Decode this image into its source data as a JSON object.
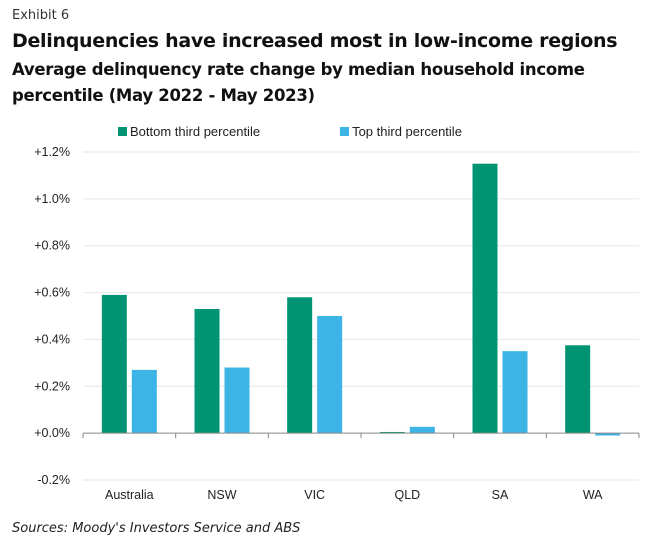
{
  "header": {
    "exhibit": "Exhibit 6",
    "title": "Delinquencies have increased most in low-income regions",
    "subtitle": "Average delinquency rate change by median household income percentile (May 2022 - May 2023)"
  },
  "source": "Sources: Moody's Investors Service and ABS",
  "colors": {
    "bottom": "#009473",
    "top": "#3db4e6",
    "grid": "#e6e6e6",
    "axis": "#888888"
  },
  "chart_data": {
    "type": "bar",
    "title": "Delinquencies have increased most in low-income regions",
    "subtitle": "Average delinquency rate change by median household income percentile (May 2022 - May 2023)",
    "xlabel": "",
    "ylabel": "",
    "categories": [
      "Australia",
      "NSW",
      "VIC",
      "QLD",
      "SA",
      "WA"
    ],
    "series": [
      {
        "name": "Bottom third percentile",
        "values": [
          0.59,
          0.53,
          0.58,
          0.005,
          1.15,
          0.375
        ]
      },
      {
        "name": "Top third percentile",
        "values": [
          0.27,
          0.28,
          0.5,
          0.027,
          0.35,
          -0.01
        ]
      }
    ],
    "ylim": [
      -0.2,
      1.2
    ],
    "yticks": [
      -0.2,
      0.0,
      0.2,
      0.4,
      0.6,
      0.8,
      1.0,
      1.2
    ],
    "ytick_labels": [
      "-0.2%",
      "+0.0%",
      "+0.2%",
      "+0.4%",
      "+0.6%",
      "+0.8%",
      "+1.0%",
      "+1.2%"
    ],
    "grid": true,
    "legend": "top"
  }
}
